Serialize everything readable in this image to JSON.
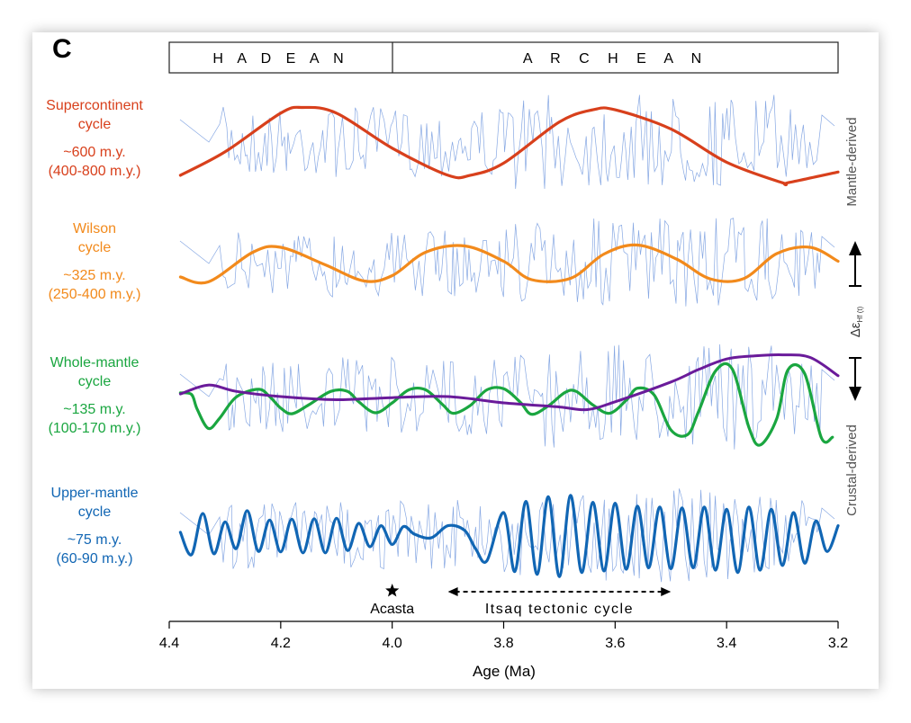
{
  "panel_letter": "C",
  "eras": [
    {
      "label": "H A D E A N"
    },
    {
      "label": "A R C H E A N"
    }
  ],
  "cycles": [
    {
      "title_l1": "Supercontinent",
      "title_l2": "cycle",
      "period": "~600 m.y.",
      "range": "(400-800 m.y.)",
      "color": "#d8401c"
    },
    {
      "title_l1": "Wilson",
      "title_l2": "cycle",
      "period": "~325 m.y.",
      "range": "(250-400 m.y.)",
      "color": "#f28a1c"
    },
    {
      "title_l1": "Whole-mantle",
      "title_l2": "cycle",
      "period": "~135 m.y.",
      "range": "(100-170 m.y.)",
      "color": "#1aa640"
    },
    {
      "title_l1": "Upper-mantle",
      "title_l2": "cycle",
      "period": "~75 m.y.",
      "range": "(60-90 m.y.)",
      "color": "#1166b4"
    }
  ],
  "right_axis": {
    "top_label": "Mantle-derived",
    "bottom_label": "Crustal-derived",
    "delta_symbol": "Δε",
    "delta_subscript": "Hf (t)"
  },
  "annotations": {
    "acasta": "Acasta",
    "itsaq": "Itsaq tectonic cycle"
  },
  "chart_data": {
    "type": "line",
    "xlabel": "Age (Ma)",
    "xlim": [
      4.4,
      3.2
    ],
    "x_ticks": [
      4.4,
      4.2,
      4.0,
      3.8,
      3.6,
      3.4,
      3.2
    ],
    "x_tick_labels": [
      "4.4",
      "4.2",
      "4.0",
      "3.8",
      "3.6",
      "3.4",
      "3.2"
    ],
    "era_boundary": 4.0,
    "acasta_age": 4.0,
    "itsaq_range": [
      3.9,
      3.5
    ],
    "noise_color": "#7a9ee0",
    "series": [
      {
        "name": "Supercontinent cycle",
        "period_my": 600,
        "x": [
          4.38,
          4.3,
          4.2,
          4.16,
          4.1,
          4.0,
          3.9,
          3.86,
          3.8,
          3.7,
          3.64,
          3.6,
          3.5,
          3.4,
          3.3,
          3.29,
          3.2
        ],
        "y": [
          -0.71,
          -0.21,
          0.62,
          0.74,
          0.62,
          -0.13,
          -0.71,
          -0.71,
          -0.45,
          0.43,
          0.69,
          0.69,
          0.28,
          -0.43,
          -0.87,
          -0.87,
          -0.64
        ]
      },
      {
        "name": "Wilson cycle",
        "period_my": 325,
        "x": [
          4.38,
          4.33,
          4.25,
          4.2,
          4.12,
          4.05,
          4.0,
          3.94,
          3.87,
          3.8,
          3.75,
          3.68,
          3.62,
          3.56,
          3.49,
          3.43,
          3.37,
          3.31,
          3.25,
          3.2
        ],
        "y": [
          -0.3,
          -0.41,
          0.25,
          0.36,
          -0.03,
          -0.39,
          -0.27,
          0.25,
          0.39,
          0.05,
          -0.36,
          -0.33,
          0.21,
          0.41,
          0.1,
          -0.34,
          -0.34,
          0.22,
          0.36,
          0.05
        ]
      },
      {
        "name": "Whole-mantle cycle",
        "period_my": 135,
        "x": [
          4.38,
          4.36,
          4.35,
          4.33,
          4.31,
          4.28,
          4.24,
          4.22,
          4.2,
          4.18,
          4.15,
          4.11,
          4.08,
          4.06,
          4.03,
          4.0,
          3.97,
          3.94,
          3.91,
          3.89,
          3.86,
          3.83,
          3.8,
          3.77,
          3.75,
          3.72,
          3.69,
          3.67,
          3.64,
          3.61,
          3.58,
          3.56,
          3.53,
          3.5,
          3.47,
          3.45,
          3.42,
          3.39,
          3.36,
          3.34,
          3.31,
          3.29,
          3.26,
          3.23,
          3.21
        ],
        "y": [
          0.07,
          0.04,
          -0.24,
          -0.61,
          -0.42,
          -0.01,
          0.14,
          0.0,
          -0.22,
          -0.33,
          -0.16,
          0.1,
          0.1,
          -0.1,
          -0.31,
          -0.12,
          0.13,
          0.13,
          -0.15,
          -0.32,
          -0.17,
          0.13,
          0.15,
          -0.11,
          -0.34,
          -0.18,
          0.08,
          0.1,
          -0.16,
          -0.32,
          -0.07,
          0.16,
          0.03,
          -0.64,
          -0.73,
          -0.28,
          0.49,
          0.53,
          -0.59,
          -0.93,
          -0.42,
          0.51,
          0.44,
          -0.79,
          -0.78
        ]
      },
      {
        "name": "Upper-mantle cycle",
        "period_my": 75,
        "x": [
          4.38,
          4.36,
          4.34,
          4.32,
          4.3,
          4.28,
          4.26,
          4.24,
          4.22,
          4.2,
          4.18,
          4.16,
          4.14,
          4.12,
          4.1,
          4.08,
          4.06,
          4.04,
          4.02,
          4.0,
          3.98,
          3.96,
          3.93,
          3.9,
          3.87,
          3.85,
          3.83,
          3.8,
          3.78,
          3.76,
          3.74,
          3.72,
          3.7,
          3.68,
          3.66,
          3.64,
          3.62,
          3.6,
          3.58,
          3.56,
          3.54,
          3.52,
          3.5,
          3.48,
          3.46,
          3.44,
          3.42,
          3.4,
          3.38,
          3.36,
          3.34,
          3.32,
          3.3,
          3.28,
          3.26,
          3.24,
          3.22,
          3.2
        ],
        "y": [
          0.06,
          -0.42,
          0.46,
          -0.4,
          0.28,
          -0.29,
          0.52,
          -0.35,
          0.32,
          -0.36,
          0.34,
          -0.38,
          0.35,
          -0.38,
          0.36,
          -0.33,
          0.25,
          -0.25,
          0.2,
          -0.2,
          0.18,
          0.02,
          -0.06,
          0.2,
          0.1,
          -0.3,
          -0.55,
          0.48,
          -0.78,
          0.72,
          -0.84,
          0.82,
          -0.89,
          0.85,
          -0.8,
          0.7,
          -0.77,
          0.68,
          -0.73,
          0.62,
          -0.7,
          0.6,
          -0.72,
          0.58,
          -0.7,
          0.6,
          -0.75,
          0.55,
          -0.8,
          0.6,
          -0.75,
          0.55,
          -0.65,
          0.48,
          -0.6,
          0.3,
          -0.35,
          0.2
        ]
      },
      {
        "name": "",
        "x": [
          4.38,
          4.33,
          4.28,
          4.2,
          4.1,
          4.0,
          3.9,
          3.8,
          3.7,
          3.65,
          3.6,
          3.5,
          3.45,
          3.4,
          3.35,
          3.3,
          3.25,
          3.2
        ],
        "y": [
          0.05,
          0.22,
          0.1,
          0.0,
          -0.06,
          -0.02,
          0.0,
          -0.12,
          -0.2,
          -0.25,
          -0.1,
          0.28,
          0.52,
          0.72,
          0.78,
          0.8,
          0.75,
          0.4
        ]
      }
    ]
  }
}
